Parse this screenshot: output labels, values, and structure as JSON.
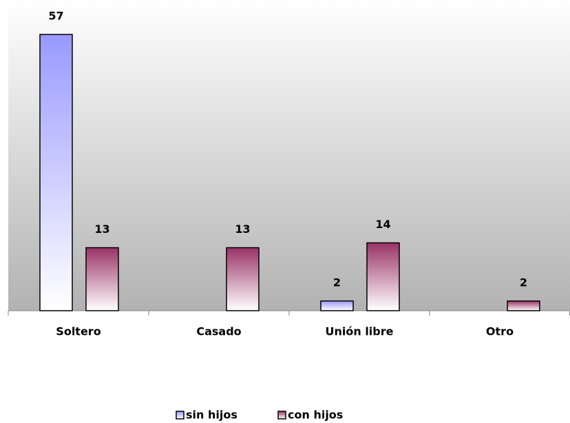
{
  "chart_data": {
    "type": "bar",
    "categories": [
      "Soltero",
      "Casado",
      "Unión libre",
      "Otro"
    ],
    "series": [
      {
        "name": "sin hijos",
        "color": "#9999ff",
        "values": [
          57,
          null,
          2,
          null
        ]
      },
      {
        "name": "con hijos",
        "color": "#993366",
        "values": [
          13,
          13,
          14,
          2
        ]
      }
    ],
    "legend": "bottom"
  }
}
